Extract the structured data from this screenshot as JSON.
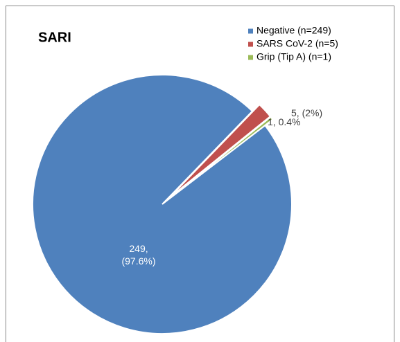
{
  "chart_data": {
    "type": "pie",
    "title": "SARI",
    "series": [
      {
        "name": "Negative (n=249)",
        "color": "#4f81bd",
        "values": [
          249
        ],
        "value_labels": [
          "249, (97.6%)"
        ]
      },
      {
        "name": "SARS CoV-2 (n=5)",
        "color": "#c0504d",
        "values": [
          5
        ],
        "value_labels": [
          "5, (2%)"
        ]
      },
      {
        "name": "Grip (Tip A) (n=1)",
        "color": "#9bbb59",
        "values": [
          1
        ],
        "value_labels": [
          "1, 0.4%"
        ]
      }
    ]
  }
}
